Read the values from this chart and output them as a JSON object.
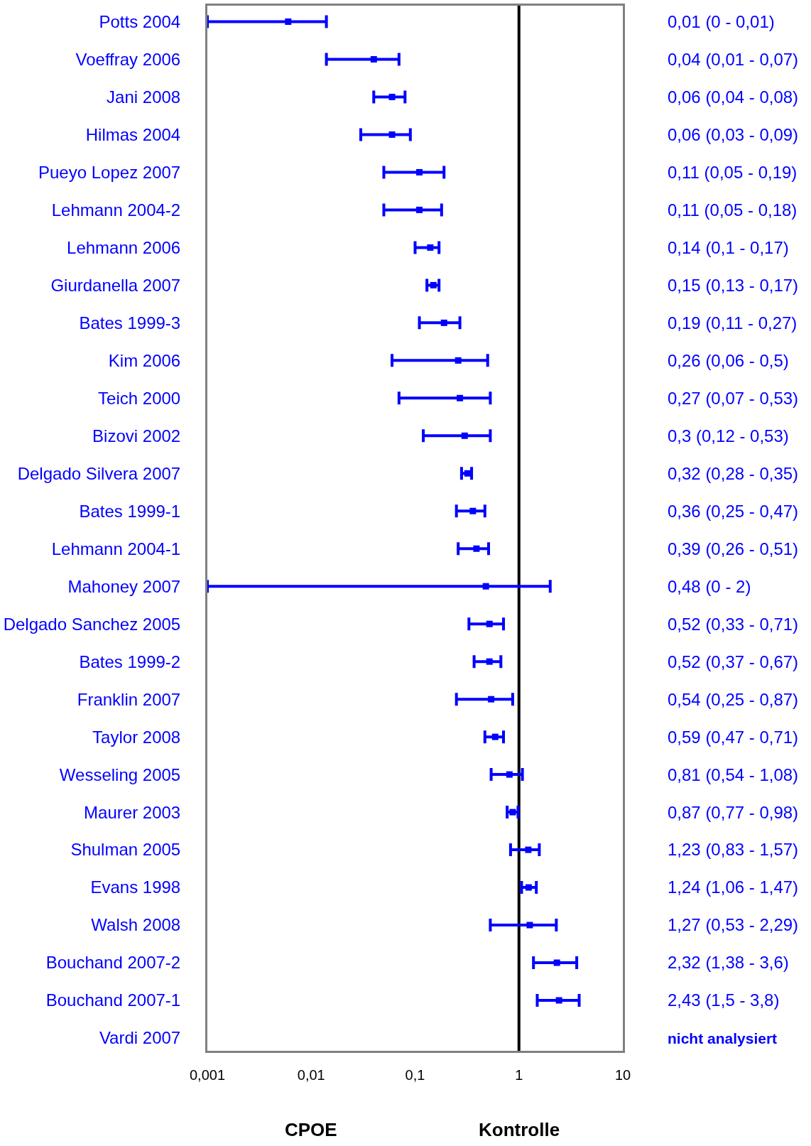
{
  "chart_data": {
    "type": "scatter",
    "orientation": "horizontal",
    "log": "x",
    "marker": "square",
    "color": "#0000ff",
    "categories": [
      "Potts 2004",
      "Voeffray 2006",
      "Jani 2008",
      "Hilmas 2004",
      "Pueyo Lopez 2007",
      "Lehmann 2004-2",
      "Lehmann 2006",
      "Giurdanella 2007",
      "Bates 1999-3",
      "Kim 2006",
      "Teich 2000",
      "Bizovi 2002",
      "Delgado Silvera 2007",
      "Bates 1999-1",
      "Lehmann 2004-1",
      "Mahoney 2007",
      "Delgado Sanchez 2005",
      "Bates 1999-2",
      "Franklin 2007",
      "Taylor 2008",
      "Wesseling 2005",
      "Maurer 2003",
      "Shulman 2005",
      "Evans 1998",
      "Walsh 2008",
      "Bouchand 2007-2",
      "Bouchand 2007-1",
      "Vardi 2007"
    ],
    "y2_categories": [
      "0,01 (0 - 0,01)",
      "0,04 (0,01 - 0,07)",
      "0,06 (0,04 - 0,08)",
      "0,06 (0,03 - 0,09)",
      "0,11 (0,05 - 0,19)",
      "0,11 (0,05 - 0,18)",
      "0,14 (0,1 - 0,17)",
      "0,15 (0,13 - 0,17)",
      "0,19 (0,11 - 0,27)",
      "0,26 (0,06 - 0,5)",
      "0,27 (0,07 - 0,53)",
      "0,3 (0,12 - 0,53)",
      "0,32 (0,28 - 0,35)",
      "0,36 (0,25 - 0,47)",
      "0,39 (0,26 - 0,51)",
      "0,48 (0 - 2)",
      "0,52 (0,33 - 0,71)",
      "0,52 (0,37 - 0,67)",
      "0,54 (0,25 - 0,87)",
      "0,59 (0,47 - 0,71)",
      "0,81 (0,54 - 1,08)",
      "0,87 (0,77 - 0,98)",
      "1,23 (0,83 - 1,57)",
      "1,24 (1,06 - 1,47)",
      "1,27 (0,53 - 2,29)",
      "2,32 (1,38 - 3,6)",
      "2,43 (1,5 - 3,8)",
      "nicht analysiert"
    ],
    "values": [
      0.006,
      0.04,
      0.06,
      0.06,
      0.11,
      0.11,
      0.14,
      0.15,
      0.19,
      0.26,
      0.27,
      0.3,
      0.32,
      0.36,
      0.39,
      0.48,
      0.52,
      0.52,
      0.54,
      0.59,
      0.81,
      0.87,
      1.23,
      1.24,
      1.27,
      2.32,
      2.43,
      null
    ],
    "errors": [
      [
        0.001,
        0.014
      ],
      [
        0.014,
        0.07
      ],
      [
        0.04,
        0.08
      ],
      [
        0.03,
        0.09
      ],
      [
        0.05,
        0.19
      ],
      [
        0.05,
        0.18
      ],
      [
        0.1,
        0.17
      ],
      [
        0.13,
        0.17
      ],
      [
        0.11,
        0.27
      ],
      [
        0.06,
        0.5
      ],
      [
        0.07,
        0.53
      ],
      [
        0.12,
        0.53
      ],
      [
        0.28,
        0.35
      ],
      [
        0.25,
        0.47
      ],
      [
        0.26,
        0.51
      ],
      [
        0.001,
        2
      ],
      [
        0.33,
        0.71
      ],
      [
        0.37,
        0.67
      ],
      [
        0.25,
        0.87
      ],
      [
        0.47,
        0.71
      ],
      [
        0.54,
        1.08
      ],
      [
        0.77,
        0.98
      ],
      [
        0.83,
        1.57
      ],
      [
        1.06,
        1.47
      ],
      [
        0.53,
        2.29
      ],
      [
        1.38,
        3.6
      ],
      [
        1.5,
        3.8
      ],
      null
    ],
    "xlim": [
      0.001,
      10
    ],
    "xticks": [
      {
        "value": 0.001,
        "label": "0,001"
      },
      {
        "value": 0.01,
        "label": "0,01"
      },
      {
        "value": 0.1,
        "label": "0,1"
      },
      1,
      10
    ],
    "ref_lines": [
      {
        "axis": "x",
        "value": 1,
        "color": "#000000"
      }
    ],
    "annotations": [
      "CPOE",
      "Kontrolle"
    ]
  }
}
